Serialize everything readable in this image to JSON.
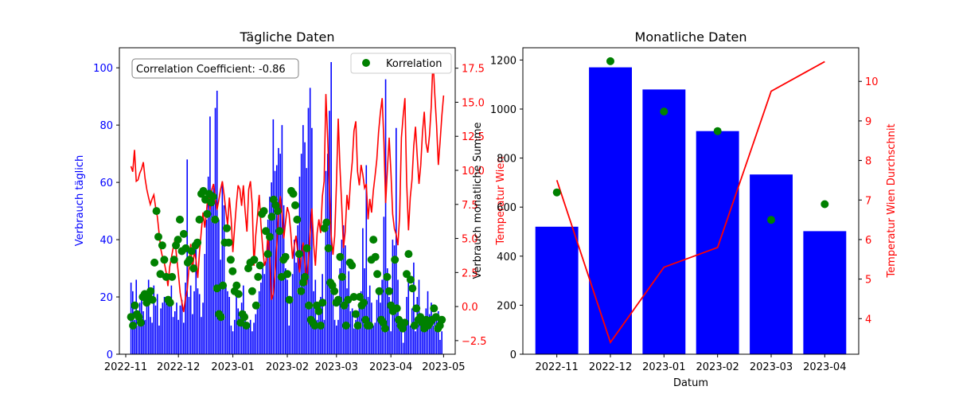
{
  "colors": {
    "bar": "#0000ff",
    "line": "#ff0000",
    "scatter": "#008000",
    "axis": "#000000"
  },
  "chart_data": [
    {
      "type": "bar",
      "title": "Tägliche Daten",
      "ylabel_left": "Verbrauch täglich",
      "ylabel_right": "Temperatur Wien",
      "xlim": [
        0,
        184
      ],
      "ylim_left": [
        0,
        107
      ],
      "ylim_right": [
        -3.5,
        19
      ],
      "x_tick_labels": [
        "2022-11",
        "2022-12",
        "2023-01",
        "2023-02",
        "2023-03",
        "2023-04",
        "2023-05"
      ],
      "x_tick_days": [
        0,
        30,
        61,
        92,
        120,
        151,
        181
      ],
      "y_ticks_left": [
        0,
        20,
        40,
        60,
        80,
        100
      ],
      "y_tick_labels_left": [
        "0",
        "20",
        "40",
        "60",
        "80",
        "100"
      ],
      "y_ticks_right": [
        -2.5,
        0,
        2.5,
        5,
        7.5,
        10,
        12.5,
        15,
        17.5
      ],
      "y_tick_labels_right": [
        "−2.5",
        "0.0",
        "2.5",
        "5.0",
        "7.5",
        "10.0",
        "12.5",
        "15.0",
        "17.5"
      ],
      "annotation": "Correlation Coefficient: -0.86",
      "legend": [
        "Korrelation"
      ],
      "legend_position": "top-right",
      "start_day": 3,
      "bars": [
        25,
        22,
        12,
        26,
        10,
        18,
        21,
        15,
        12,
        20,
        26,
        13,
        11,
        24,
        17,
        21,
        10,
        16,
        18,
        20,
        19,
        17,
        20,
        24,
        13,
        15,
        18,
        12,
        17,
        19,
        11,
        25,
        68,
        20,
        24,
        14,
        22,
        37,
        23,
        21,
        13,
        18,
        35,
        47,
        62,
        83,
        55,
        58,
        86,
        92,
        47,
        33,
        60,
        52,
        24,
        22,
        20,
        10,
        8,
        12,
        20,
        16,
        13,
        18,
        24,
        15,
        10,
        9,
        12,
        8,
        11,
        14,
        18,
        22,
        25,
        30,
        28,
        34,
        47,
        55,
        60,
        82,
        64,
        66,
        72,
        70,
        80,
        52,
        30,
        26,
        10,
        18,
        28,
        40,
        32,
        45,
        62,
        70,
        80,
        74,
        65,
        86,
        93,
        79,
        22,
        26,
        12,
        15,
        20,
        28,
        12,
        64,
        70,
        85,
        102,
        22,
        12,
        10,
        12,
        30,
        40,
        45,
        38,
        23,
        29,
        15,
        16,
        9,
        12,
        13,
        18,
        22,
        44,
        30,
        66,
        20,
        24,
        18,
        10,
        11,
        19,
        22,
        18,
        26,
        48,
        96,
        30,
        20,
        8,
        40,
        38,
        79,
        26,
        11,
        10,
        4,
        12,
        20,
        25,
        10,
        16,
        32,
        8,
        20,
        26,
        10,
        12,
        9,
        16,
        22,
        14,
        18,
        10,
        12,
        14,
        15,
        5,
        8
      ],
      "temperature": [
        10.3,
        9.9,
        11.5,
        9.2,
        9.3,
        9.8,
        10.1,
        10.6,
        9.4,
        8.6,
        8.0,
        7.5,
        7.9,
        8.2,
        7.3,
        6.6,
        5.4,
        4.2,
        3.6,
        3.2,
        2.5,
        1.5,
        2.9,
        3.6,
        4.3,
        4.9,
        3.6,
        2.4,
        1.0,
        0.3,
        -0.4,
        0.6,
        1.2,
        2.8,
        4.6,
        2.5,
        4.1,
        3.4,
        2.1,
        4.0,
        5.5,
        6.9,
        5.8,
        7.0,
        8.4,
        7.1,
        8.6,
        9.0,
        8.0,
        7.1,
        7.8,
        8.6,
        9.2,
        8.2,
        7.0,
        6.0,
        8.0,
        6.5,
        4.0,
        5.8,
        7.5,
        8.9,
        8.6,
        7.4,
        8.9,
        7.0,
        5.5,
        8.6,
        9.2,
        7.5,
        3.0,
        5.2,
        6.6,
        8.2,
        6.0,
        4.3,
        3.0,
        3.4,
        5.4,
        3.6,
        0.5,
        0.9,
        2.4,
        4.5,
        6.9,
        8.1,
        6.8,
        5.0,
        6.2,
        7.3,
        6.8,
        5.4,
        3.5,
        4.5,
        5.2,
        3.9,
        2.5,
        3.8,
        4.7,
        3.2,
        1.6,
        3.4,
        5.4,
        7.2,
        4.6,
        3.0,
        5.4,
        6.4,
        5.4,
        8.1,
        9.2,
        15.6,
        12.3,
        8.5,
        5.2,
        3.8,
        5.2,
        9.1,
        13.8,
        10.2,
        7.4,
        4.3,
        5.5,
        8.2,
        7.1,
        9.2,
        10.6,
        12.9,
        13.6,
        9.9,
        8.9,
        10.4,
        9.7,
        8.7,
        9.0,
        6.4,
        7.9,
        6.9,
        8.5,
        9.6,
        10.8,
        12.8,
        14.2,
        15.3,
        12.1,
        7.6,
        10.1,
        12.4,
        9.9,
        6.8,
        5.7,
        5.3,
        4.5,
        6.7,
        12.4,
        14.0,
        15.3,
        9.1,
        5.6,
        8.0,
        9.3,
        11.8,
        13.2,
        11.0,
        9.0,
        10.4,
        12.8,
        14.3,
        12.0,
        11.3,
        12.6,
        14.7,
        18.2,
        15.6,
        13.3,
        10.4,
        12.1,
        14.0,
        15.5
      ],
      "scatter_points": [
        [
          10.3,
          13
        ],
        [
          10.6,
          10
        ],
        [
          9.9,
          17
        ],
        [
          9.3,
          14
        ],
        [
          9.1,
          13
        ],
        [
          8.7,
          11
        ],
        [
          8.2,
          20
        ],
        [
          7.9,
          21
        ],
        [
          7.5,
          18
        ],
        [
          7.3,
          20
        ],
        [
          7.1,
          22
        ],
        [
          6.9,
          19
        ],
        [
          6.6,
          32
        ],
        [
          6.4,
          50
        ],
        [
          6.2,
          41
        ],
        [
          6.0,
          28
        ],
        [
          5.8,
          38
        ],
        [
          5.6,
          33
        ],
        [
          5.3,
          27
        ],
        [
          5.0,
          19
        ],
        [
          4.8,
          18
        ],
        [
          4.6,
          27
        ],
        [
          4.4,
          33
        ],
        [
          4.1,
          38
        ],
        [
          3.9,
          40
        ],
        [
          3.7,
          47
        ],
        [
          3.5,
          36
        ],
        [
          3.3,
          42
        ],
        [
          3.2,
          37
        ],
        [
          3.0,
          32
        ],
        [
          2.8,
          33
        ],
        [
          2.6,
          36
        ],
        [
          2.4,
          30
        ],
        [
          2.1,
          38
        ],
        [
          1.9,
          39
        ],
        [
          1.6,
          47
        ],
        [
          1.4,
          56
        ],
        [
          1.1,
          57
        ],
        [
          0.9,
          54
        ],
        [
          0.7,
          49
        ],
        [
          0.4,
          56
        ],
        [
          0.3,
          53
        ],
        [
          0.2,
          55
        ],
        [
          0.1,
          47
        ],
        [
          0.0,
          23
        ],
        [
          -0.3,
          14
        ],
        [
          -0.6,
          13
        ],
        [
          -1.0,
          24
        ],
        [
          -0.8,
          39
        ],
        [
          -0.5,
          44
        ],
        [
          -0.3,
          39
        ],
        [
          -0.1,
          33
        ],
        [
          0.2,
          29
        ],
        [
          0.5,
          22
        ],
        [
          0.8,
          24
        ],
        [
          1.1,
          21
        ],
        [
          1.4,
          11
        ],
        [
          1.7,
          14
        ],
        [
          2.0,
          13
        ],
        [
          2.4,
          10
        ],
        [
          2.7,
          30
        ],
        [
          3.0,
          32
        ],
        [
          3.3,
          22
        ],
        [
          3.6,
          33
        ],
        [
          3.9,
          17
        ],
        [
          4.2,
          27
        ],
        [
          4.5,
          31
        ],
        [
          4.9,
          49
        ],
        [
          5.3,
          50
        ],
        [
          5.6,
          43
        ],
        [
          6.0,
          35
        ],
        [
          6.4,
          41
        ],
        [
          6.8,
          48
        ],
        [
          7.2,
          54
        ],
        [
          7.6,
          52
        ],
        [
          8.0,
          50
        ],
        [
          8.4,
          43
        ],
        [
          8.8,
          27
        ],
        [
          9.2,
          33
        ],
        [
          9.5,
          34
        ],
        [
          9.9,
          28
        ],
        [
          10.2,
          19
        ],
        [
          9.8,
          57
        ],
        [
          9.5,
          56
        ],
        [
          9.1,
          52
        ],
        [
          8.7,
          47
        ],
        [
          8.3,
          35
        ],
        [
          7.9,
          22
        ],
        [
          7.5,
          25
        ],
        [
          7.1,
          27
        ],
        [
          6.7,
          37
        ],
        [
          6.3,
          17
        ],
        [
          5.9,
          12
        ],
        [
          5.5,
          11
        ],
        [
          5.1,
          10
        ],
        [
          4.7,
          17
        ],
        [
          4.3,
          15
        ],
        [
          3.9,
          10
        ],
        [
          3.5,
          18
        ],
        [
          3.1,
          44
        ],
        [
          2.7,
          46
        ],
        [
          2.3,
          37
        ],
        [
          1.9,
          25
        ],
        [
          1.5,
          24
        ],
        [
          1.1,
          22
        ],
        [
          0.7,
          18
        ],
        [
          0.3,
          19
        ],
        [
          -0.1,
          34
        ],
        [
          -0.5,
          27
        ],
        [
          -0.9,
          17
        ],
        [
          -1.3,
          10
        ],
        [
          -1.7,
          19
        ],
        [
          -2.1,
          32
        ],
        [
          -2.4,
          31
        ],
        [
          -2.2,
          20
        ],
        [
          -1.9,
          14
        ],
        [
          -1.5,
          10
        ],
        [
          -1.2,
          20
        ],
        [
          -0.9,
          17
        ],
        [
          -0.6,
          18
        ],
        [
          -0.3,
          12
        ],
        [
          0.0,
          10
        ],
        [
          0.3,
          10
        ],
        [
          0.6,
          33
        ],
        [
          0.9,
          40
        ],
        [
          1.2,
          34
        ],
        [
          1.5,
          28
        ],
        [
          1.8,
          22
        ],
        [
          2.1,
          12
        ],
        [
          2.4,
          11
        ],
        [
          2.7,
          9
        ],
        [
          3.0,
          27
        ],
        [
          3.3,
          22
        ],
        [
          3.6,
          17
        ],
        [
          3.9,
          15
        ],
        [
          4.2,
          33
        ],
        [
          4.5,
          16
        ],
        [
          4.8,
          12
        ],
        [
          5.1,
          10
        ],
        [
          5.4,
          9
        ],
        [
          5.7,
          11
        ],
        [
          6.0,
          28
        ],
        [
          6.3,
          35
        ],
        [
          6.6,
          26
        ],
        [
          6.9,
          23
        ],
        [
          7.2,
          10
        ],
        [
          7.5,
          16
        ],
        [
          7.8,
          12
        ],
        [
          8.1,
          13
        ],
        [
          8.4,
          11
        ],
        [
          8.7,
          9
        ],
        [
          9.0,
          12
        ],
        [
          9.3,
          10
        ],
        [
          9.6,
          11
        ],
        [
          9.9,
          12
        ],
        [
          10.2,
          16
        ],
        [
          10.5,
          13
        ],
        [
          10.8,
          9
        ],
        [
          11.1,
          10
        ],
        [
          11.4,
          12
        ]
      ]
    },
    {
      "type": "bar",
      "title": "Monatliche Daten",
      "xlabel": "Datum",
      "ylabel_left": "Verbrauch monatliche Summe",
      "ylabel_right": "Temperatur Wien Durchschnit",
      "categories": [
        "2022-11",
        "2022-12",
        "2023-01",
        "2023-02",
        "2023-03",
        "2023-04"
      ],
      "values": [
        520,
        1170,
        1080,
        910,
        733,
        502
      ],
      "temperature": [
        7.5,
        3.4,
        5.3,
        5.8,
        9.75,
        10.5
      ],
      "scatter_values": [
        660,
        1195,
        990,
        910,
        548,
        612
      ],
      "ylim_left": [
        0,
        1250
      ],
      "ylim_right": [
        3.1,
        10.85
      ],
      "y_ticks_left": [
        0,
        200,
        400,
        600,
        800,
        1000,
        1200
      ],
      "y_tick_labels_left": [
        "0",
        "200",
        "400",
        "600",
        "800",
        "1000",
        "1200"
      ],
      "y_ticks_right": [
        4,
        5,
        6,
        7,
        8,
        9,
        10
      ],
      "y_tick_labels_right": [
        "4",
        "5",
        "6",
        "7",
        "8",
        "9",
        "10"
      ]
    }
  ]
}
